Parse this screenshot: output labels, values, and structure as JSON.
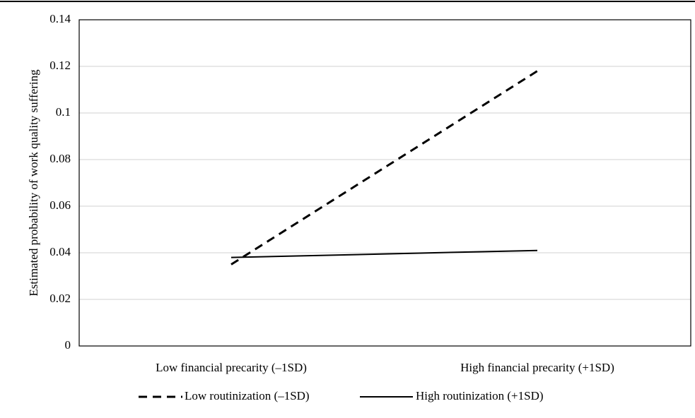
{
  "chart_data": {
    "type": "line",
    "title": "",
    "ylabel": "Estimated probability of work quality suffering",
    "xlabel": "",
    "categories": [
      "Low financial precarity (–1SD)",
      "High financial precarity (+1SD)"
    ],
    "ylim": [
      0,
      0.14
    ],
    "yticks": [
      "0",
      "0.02",
      "0.04",
      "0.06",
      "0.08",
      "0.1",
      "0.12",
      "0.14"
    ],
    "grid": true,
    "legend_position": "bottom",
    "series": [
      {
        "name": "Low routinization (–1SD)",
        "values": [
          0.035,
          0.118
        ],
        "line_style": "dashed",
        "color": "#000000"
      },
      {
        "name": "High routinization (+1SD)",
        "values": [
          0.038,
          0.041
        ],
        "line_style": "solid",
        "color": "#000000"
      }
    ],
    "colors": {
      "line": "#000000",
      "grid": "#d0d0d0",
      "axis": "#000000",
      "top_rule": "#000000"
    }
  }
}
